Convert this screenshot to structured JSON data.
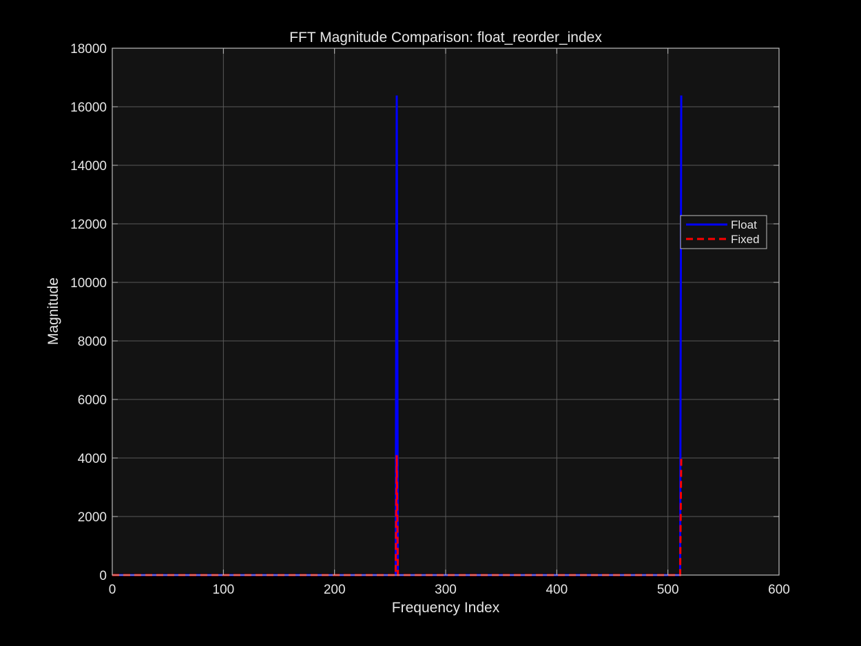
{
  "chart_data": {
    "type": "line",
    "title": "FFT Magnitude Comparison: float_reorder_index",
    "xlabel": "Frequency Index",
    "ylabel": "Magnitude",
    "xlim": [
      0,
      600
    ],
    "ylim": [
      0,
      18000
    ],
    "xticks": [
      0,
      100,
      200,
      300,
      400,
      500,
      600
    ],
    "yticks": [
      0,
      2000,
      4000,
      6000,
      8000,
      10000,
      12000,
      14000,
      16000,
      18000
    ],
    "xtick_labels": [
      "0",
      "100",
      "200",
      "300",
      "400",
      "500",
      "600"
    ],
    "ytick_labels": [
      "0",
      "2000",
      "4000",
      "6000",
      "8000",
      "10000",
      "12000",
      "14000",
      "16000",
      "18000"
    ],
    "grid": true,
    "legend_position": "right",
    "series": [
      {
        "name": "Float",
        "color": "#0000ff",
        "style": "solid",
        "x": [
          0,
          255,
          256,
          257,
          511,
          512
        ],
        "y": [
          0,
          0,
          16384,
          0,
          0,
          16384
        ]
      },
      {
        "name": "Fixed",
        "color": "#ff0000",
        "style": "dashed",
        "x": [
          0,
          255,
          256,
          257,
          511,
          512
        ],
        "y": [
          0,
          0,
          4096,
          0,
          0,
          4096
        ]
      }
    ]
  }
}
